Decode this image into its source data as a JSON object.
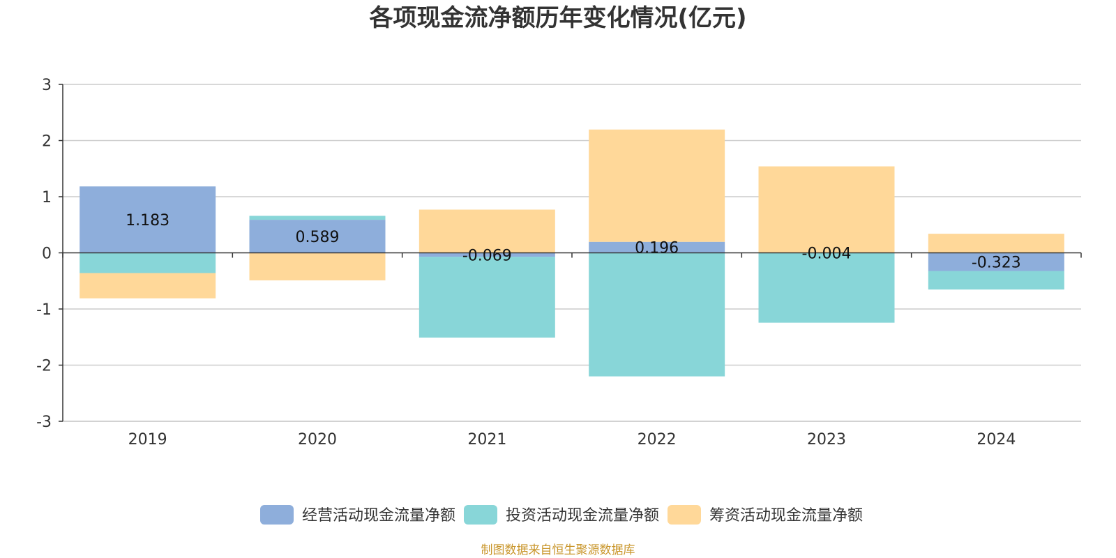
{
  "chart_data": {
    "type": "bar",
    "stacked": true,
    "title": "各项现金流净额历年变化情况(亿元)",
    "xlabel": "",
    "ylabel": "",
    "categories": [
      "2019",
      "2020",
      "2021",
      "2022",
      "2023",
      "2024"
    ],
    "ylim": [
      -3,
      3
    ],
    "yticks": [
      3,
      2,
      1,
      0,
      -1,
      -2,
      -3
    ],
    "grid": true,
    "legend_position": "bottom",
    "series": [
      {
        "name": "经营活动现金流量净额",
        "color": "#8eaedb",
        "values": [
          1.183,
          0.589,
          -0.069,
          0.196,
          -0.004,
          -0.323
        ],
        "labels": [
          "1.183",
          "0.589",
          "-0.069",
          "0.196",
          "-0.004",
          "-0.323"
        ]
      },
      {
        "name": "投资活动现金流量净额",
        "color": "#88d6d8",
        "values": [
          -0.36,
          0.07,
          -1.44,
          -2.2,
          -1.24,
          -0.33
        ]
      },
      {
        "name": "筹资活动现金流量净额",
        "color": "#ffd899",
        "values": [
          -0.45,
          -0.49,
          0.77,
          2.0,
          1.54,
          0.34
        ]
      }
    ],
    "source_note": "制图数据来自恒生聚源数据库",
    "source_color": "#c9962b"
  }
}
